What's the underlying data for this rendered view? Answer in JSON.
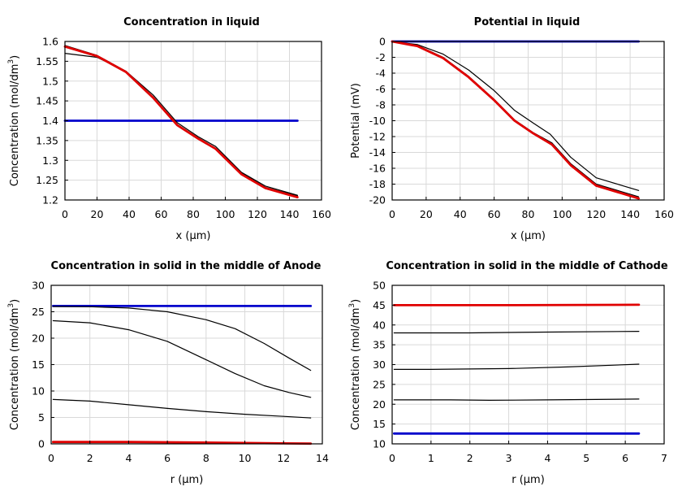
{
  "chart_data": [
    {
      "type": "line",
      "title": "Concentration in liquid",
      "xlabel": "x (µm)",
      "ylabel_main": "Concentration (mol/dm",
      "ylabel_sup": "3",
      "ylabel_tail": ")",
      "xlim": [
        0,
        160
      ],
      "ylim": [
        1.2,
        1.6
      ],
      "xticks": [
        "0",
        "20",
        "40",
        "60",
        "80",
        "100",
        "120",
        "140",
        "160"
      ],
      "yticks": [
        "1.2",
        "1.25",
        "1.3",
        "1.35",
        "1.4",
        "1.45",
        "1.5",
        "1.55",
        "1.6"
      ],
      "grid": true,
      "series": [
        {
          "color": "#0000cc",
          "width": 2.8,
          "points": [
            [
              0,
              1.4
            ],
            [
              145,
              1.4
            ]
          ]
        },
        {
          "color": "#000000",
          "width": 1.2,
          "points": [
            [
              0,
              1.57
            ],
            [
              20,
              1.56
            ],
            [
              38,
              1.525
            ],
            [
              55,
              1.465
            ],
            [
              70,
              1.395
            ],
            [
              83,
              1.36
            ],
            [
              94,
              1.335
            ],
            [
              110,
              1.27
            ],
            [
              125,
              1.235
            ],
            [
              145,
              1.212
            ]
          ]
        },
        {
          "color": "#000000",
          "width": 1.2,
          "points": [
            [
              0,
              1.59
            ],
            [
              20,
              1.565
            ],
            [
              38,
              1.525
            ],
            [
              55,
              1.46
            ],
            [
              70,
              1.39
            ],
            [
              83,
              1.357
            ],
            [
              94,
              1.33
            ],
            [
              110,
              1.268
            ],
            [
              125,
              1.232
            ],
            [
              145,
              1.21
            ]
          ]
        },
        {
          "color": "#e00000",
          "width": 2.8,
          "points": [
            [
              0,
              1.587
            ],
            [
              20,
              1.563
            ],
            [
              38,
              1.523
            ],
            [
              55,
              1.458
            ],
            [
              70,
              1.389
            ],
            [
              83,
              1.355
            ],
            [
              94,
              1.329
            ],
            [
              110,
              1.265
            ],
            [
              125,
              1.23
            ],
            [
              145,
              1.207
            ]
          ]
        }
      ]
    },
    {
      "type": "line",
      "title": "Potential in liquid",
      "xlabel": "x (µm)",
      "ylabel_main": "Potential (mV)",
      "ylabel_sup": "",
      "ylabel_tail": "",
      "xlim": [
        0,
        160
      ],
      "ylim": [
        -20,
        0
      ],
      "xticks": [
        "0",
        "20",
        "40",
        "60",
        "80",
        "100",
        "120",
        "140",
        "160"
      ],
      "yticks": [
        "-20",
        "-18",
        "-16",
        "-14",
        "-12",
        "-10",
        "-8",
        "-6",
        "-4",
        "-2",
        "0"
      ],
      "grid": true,
      "series": [
        {
          "color": "#0000cc",
          "width": 2.8,
          "points": [
            [
              0,
              0
            ],
            [
              145,
              0
            ]
          ]
        },
        {
          "color": "#000000",
          "width": 1.2,
          "points": [
            [
              0,
              0
            ],
            [
              15,
              -0.4
            ],
            [
              30,
              -1.6
            ],
            [
              45,
              -3.6
            ],
            [
              60,
              -6.2
            ],
            [
              72,
              -8.7
            ],
            [
              83,
              -10.3
            ],
            [
              93,
              -11.7
            ],
            [
              105,
              -14.6
            ],
            [
              120,
              -17.2
            ],
            [
              145,
              -18.8
            ]
          ]
        },
        {
          "color": "#000000",
          "width": 1.2,
          "points": [
            [
              0,
              0
            ],
            [
              15,
              -0.5
            ],
            [
              30,
              -2
            ],
            [
              45,
              -4.4
            ],
            [
              60,
              -7.3
            ],
            [
              72,
              -9.9
            ],
            [
              83,
              -11.5
            ],
            [
              94,
              -12.8
            ],
            [
              105,
              -15.4
            ],
            [
              120,
              -18
            ],
            [
              145,
              -19.6
            ]
          ]
        },
        {
          "color": "#e00000",
          "width": 2.8,
          "points": [
            [
              0,
              0
            ],
            [
              15,
              -0.6
            ],
            [
              30,
              -2.1
            ],
            [
              45,
              -4.5
            ],
            [
              60,
              -7.4
            ],
            [
              72,
              -10
            ],
            [
              83,
              -11.6
            ],
            [
              94,
              -13
            ],
            [
              105,
              -15.6
            ],
            [
              120,
              -18.2
            ],
            [
              145,
              -19.8
            ]
          ]
        }
      ]
    },
    {
      "type": "line",
      "title": "Concentration in solid in the middle of Anode",
      "xlabel": "r (µm)",
      "ylabel_main": "Concentration (mol/dm",
      "ylabel_sup": "3",
      "ylabel_tail": ")",
      "xlim": [
        0,
        14
      ],
      "ylim": [
        0,
        30
      ],
      "xticks": [
        "0",
        "2",
        "4",
        "6",
        "8",
        "10",
        "12",
        "14"
      ],
      "yticks": [
        "0",
        "5",
        "10",
        "15",
        "20",
        "25",
        "30"
      ],
      "grid": true,
      "series": [
        {
          "color": "#0000cc",
          "width": 2.8,
          "points": [
            [
              0.1,
              26.1
            ],
            [
              13.4,
              26.1
            ]
          ]
        },
        {
          "color": "#000000",
          "width": 1.2,
          "points": [
            [
              0.1,
              26
            ],
            [
              2,
              25.95
            ],
            [
              4,
              25.7
            ],
            [
              6,
              25
            ],
            [
              8,
              23.5
            ],
            [
              9.5,
              21.8
            ],
            [
              11,
              19
            ],
            [
              12.3,
              16.2
            ],
            [
              13.4,
              13.9
            ]
          ]
        },
        {
          "color": "#000000",
          "width": 1.2,
          "points": [
            [
              0.1,
              23.3
            ],
            [
              2,
              22.9
            ],
            [
              4,
              21.6
            ],
            [
              6,
              19.4
            ],
            [
              8,
              15.9
            ],
            [
              9.5,
              13.3
            ],
            [
              11,
              11
            ],
            [
              12.3,
              9.7
            ],
            [
              13.4,
              8.8
            ]
          ]
        },
        {
          "color": "#000000",
          "width": 1.2,
          "points": [
            [
              0.1,
              8.4
            ],
            [
              2,
              8.1
            ],
            [
              4,
              7.4
            ],
            [
              6,
              6.7
            ],
            [
              8,
              6.1
            ],
            [
              10,
              5.6
            ],
            [
              12,
              5.2
            ],
            [
              13.4,
              4.9
            ]
          ]
        },
        {
          "color": "#e00000",
          "width": 2.8,
          "points": [
            [
              0.1,
              0.35
            ],
            [
              4,
              0.35
            ],
            [
              8,
              0.25
            ],
            [
              12,
              0.1
            ],
            [
              13.4,
              0.05
            ]
          ]
        }
      ]
    },
    {
      "type": "line",
      "title": "Concentration in solid in the middle of Cathode",
      "xlabel": "r (µm)",
      "ylabel_main": "Concentration (mol/dm",
      "ylabel_sup": "3",
      "ylabel_tail": ")",
      "xlim": [
        0,
        7
      ],
      "ylim": [
        10,
        50
      ],
      "xticks": [
        "0",
        "1",
        "2",
        "3",
        "4",
        "5",
        "6",
        "7"
      ],
      "yticks": [
        "10",
        "15",
        "20",
        "25",
        "30",
        "35",
        "40",
        "45",
        "50"
      ],
      "grid": true,
      "series": [
        {
          "color": "#0000cc",
          "width": 2.8,
          "points": [
            [
              0.05,
              12.6
            ],
            [
              6.35,
              12.6
            ]
          ]
        },
        {
          "color": "#e00000",
          "width": 2.8,
          "points": [
            [
              0.05,
              45
            ],
            [
              3,
              45
            ],
            [
              6.35,
              45.1
            ]
          ]
        },
        {
          "color": "#000000",
          "width": 1.2,
          "points": [
            [
              0.05,
              38
            ],
            [
              2,
              38
            ],
            [
              4,
              38.2
            ],
            [
              6.35,
              38.4
            ]
          ]
        },
        {
          "color": "#000000",
          "width": 1.2,
          "points": [
            [
              0.05,
              28.8
            ],
            [
              1,
              28.8
            ],
            [
              3,
              29
            ],
            [
              4.5,
              29.4
            ],
            [
              6.35,
              30.1
            ]
          ]
        },
        {
          "color": "#000000",
          "width": 1.2,
          "points": [
            [
              0.05,
              21.1
            ],
            [
              1.5,
              21.1
            ],
            [
              2.5,
              21
            ],
            [
              4,
              21.1
            ],
            [
              6.35,
              21.3
            ]
          ]
        }
      ]
    }
  ]
}
